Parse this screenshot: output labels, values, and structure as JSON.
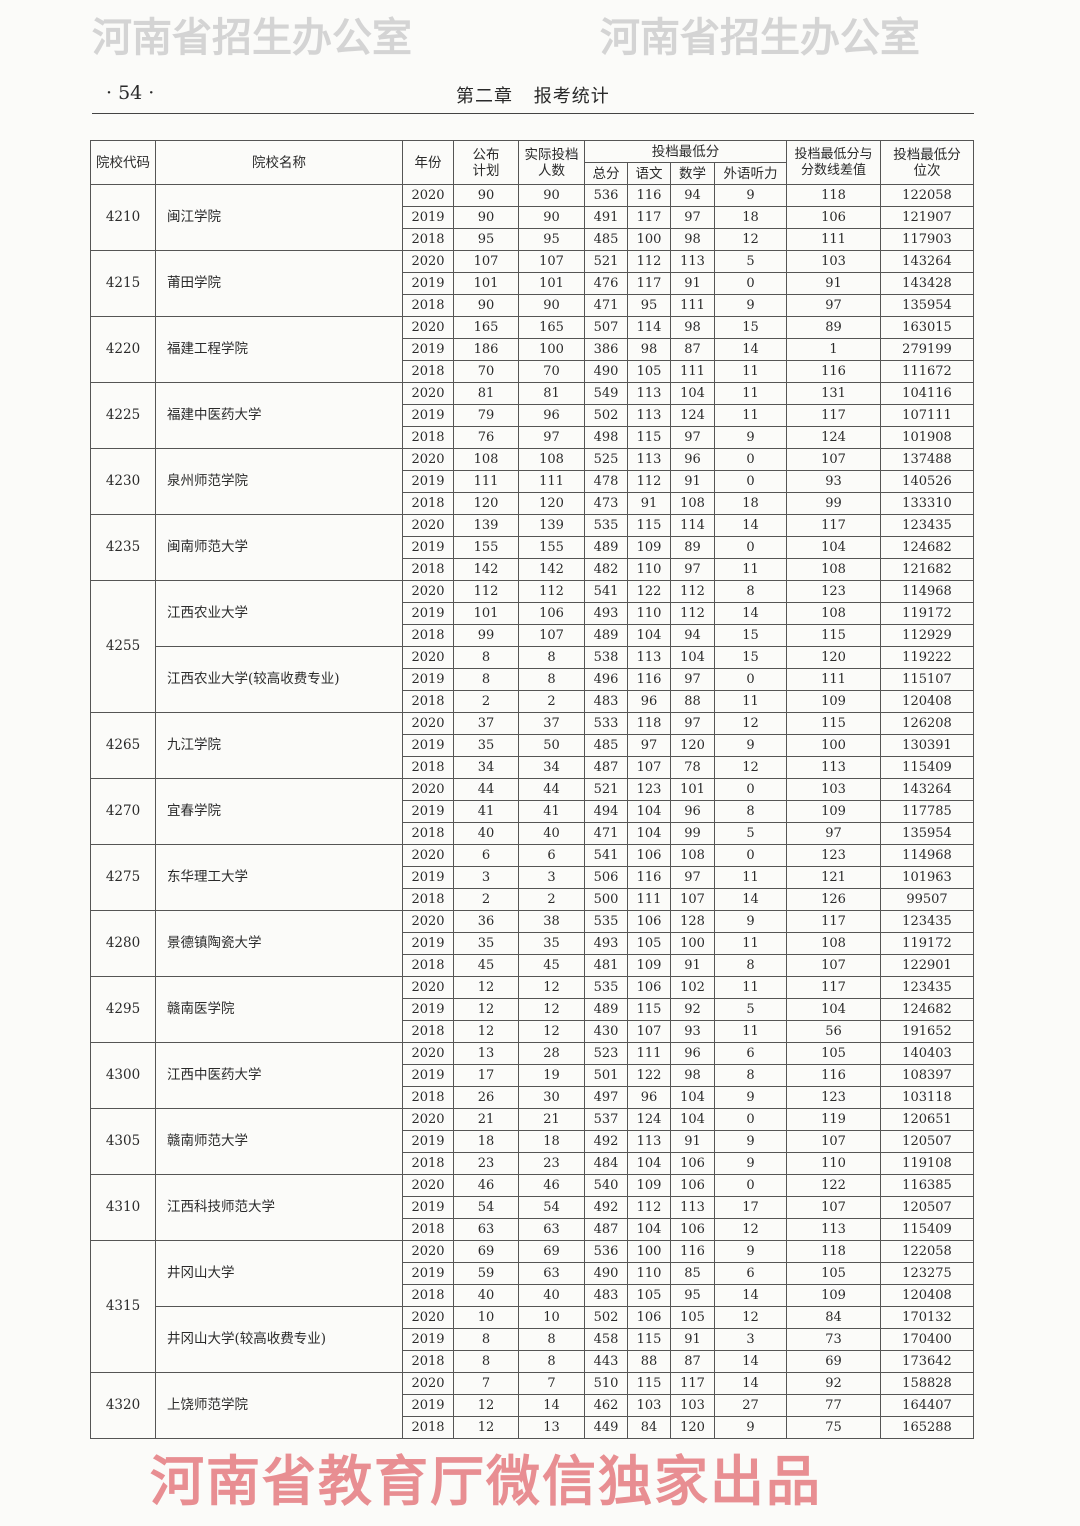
{
  "header": {
    "page_number": "· 54 ·",
    "chapter": "第二章 报考统计"
  },
  "columns": {
    "code": "院校代码",
    "name": "院校名称",
    "year": "年份",
    "plan": "公布计划",
    "actual": "实际投档人数",
    "min_score_group": "投档最低分",
    "total": "总分",
    "chinese": "语文",
    "math": "数学",
    "listening": "外语听力",
    "diff": "投档最低分与分数线差值",
    "rank": "投档最低分位次"
  },
  "watermarks": {
    "red": "河南省教育厅微信独家出品",
    "grey": "河南省招生办公室"
  },
  "groups": [
    {
      "code": "4210",
      "schools": [
        {
          "name": "闽江学院",
          "rows": [
            [
              "2020",
              "90",
              "90",
              "536",
              "116",
              "94",
              "9",
              "118",
              "122058"
            ],
            [
              "2019",
              "90",
              "90",
              "491",
              "117",
              "97",
              "18",
              "106",
              "121907"
            ],
            [
              "2018",
              "95",
              "95",
              "485",
              "100",
              "98",
              "12",
              "111",
              "117903"
            ]
          ]
        }
      ]
    },
    {
      "code": "4215",
      "schools": [
        {
          "name": "莆田学院",
          "rows": [
            [
              "2020",
              "107",
              "107",
              "521",
              "112",
              "113",
              "5",
              "103",
              "143264"
            ],
            [
              "2019",
              "101",
              "101",
              "476",
              "117",
              "91",
              "0",
              "91",
              "143428"
            ],
            [
              "2018",
              "90",
              "90",
              "471",
              "95",
              "111",
              "9",
              "97",
              "135954"
            ]
          ]
        }
      ]
    },
    {
      "code": "4220",
      "schools": [
        {
          "name": "福建工程学院",
          "rows": [
            [
              "2020",
              "165",
              "165",
              "507",
              "114",
              "98",
              "15",
              "89",
              "163015"
            ],
            [
              "2019",
              "186",
              "100",
              "386",
              "98",
              "87",
              "14",
              "1",
              "279199"
            ],
            [
              "2018",
              "70",
              "70",
              "490",
              "105",
              "111",
              "11",
              "116",
              "111672"
            ]
          ]
        }
      ]
    },
    {
      "code": "4225",
      "schools": [
        {
          "name": "福建中医药大学",
          "rows": [
            [
              "2020",
              "81",
              "81",
              "549",
              "113",
              "104",
              "11",
              "131",
              "104116"
            ],
            [
              "2019",
              "79",
              "96",
              "502",
              "113",
              "124",
              "11",
              "117",
              "107111"
            ],
            [
              "2018",
              "76",
              "97",
              "498",
              "115",
              "97",
              "9",
              "124",
              "101908"
            ]
          ]
        }
      ]
    },
    {
      "code": "4230",
      "schools": [
        {
          "name": "泉州师范学院",
          "rows": [
            [
              "2020",
              "108",
              "108",
              "525",
              "113",
              "96",
              "0",
              "107",
              "137488"
            ],
            [
              "2019",
              "111",
              "111",
              "478",
              "112",
              "91",
              "0",
              "93",
              "140526"
            ],
            [
              "2018",
              "120",
              "120",
              "473",
              "91",
              "108",
              "18",
              "99",
              "133310"
            ]
          ]
        }
      ]
    },
    {
      "code": "4235",
      "schools": [
        {
          "name": "闽南师范大学",
          "rows": [
            [
              "2020",
              "139",
              "139",
              "535",
              "115",
              "114",
              "14",
              "117",
              "123435"
            ],
            [
              "2019",
              "155",
              "155",
              "489",
              "109",
              "89",
              "0",
              "104",
              "124682"
            ],
            [
              "2018",
              "142",
              "142",
              "482",
              "110",
              "97",
              "11",
              "108",
              "121682"
            ]
          ]
        }
      ]
    },
    {
      "code": "4255",
      "schools": [
        {
          "name": "江西农业大学",
          "rows": [
            [
              "2020",
              "112",
              "112",
              "541",
              "122",
              "112",
              "8",
              "123",
              "114968"
            ],
            [
              "2019",
              "101",
              "106",
              "493",
              "110",
              "112",
              "14",
              "108",
              "119172"
            ],
            [
              "2018",
              "99",
              "107",
              "489",
              "104",
              "94",
              "15",
              "115",
              "112929"
            ]
          ]
        },
        {
          "name": "江西农业大学(较高收费专业)",
          "rows": [
            [
              "2020",
              "8",
              "8",
              "538",
              "113",
              "104",
              "15",
              "120",
              "119222"
            ],
            [
              "2019",
              "8",
              "8",
              "496",
              "116",
              "97",
              "0",
              "111",
              "115107"
            ],
            [
              "2018",
              "2",
              "2",
              "483",
              "96",
              "88",
              "11",
              "109",
              "120408"
            ]
          ]
        }
      ]
    },
    {
      "code": "4265",
      "schools": [
        {
          "name": "九江学院",
          "rows": [
            [
              "2020",
              "37",
              "37",
              "533",
              "118",
              "97",
              "12",
              "115",
              "126208"
            ],
            [
              "2019",
              "35",
              "50",
              "485",
              "97",
              "120",
              "9",
              "100",
              "130391"
            ],
            [
              "2018",
              "34",
              "34",
              "487",
              "107",
              "78",
              "12",
              "113",
              "115409"
            ]
          ]
        }
      ]
    },
    {
      "code": "4270",
      "schools": [
        {
          "name": "宜春学院",
          "rows": [
            [
              "2020",
              "44",
              "44",
              "521",
              "123",
              "101",
              "0",
              "103",
              "143264"
            ],
            [
              "2019",
              "41",
              "41",
              "494",
              "104",
              "96",
              "8",
              "109",
              "117785"
            ],
            [
              "2018",
              "40",
              "40",
              "471",
              "104",
              "99",
              "5",
              "97",
              "135954"
            ]
          ]
        }
      ]
    },
    {
      "code": "4275",
      "schools": [
        {
          "name": "东华理工大学",
          "rows": [
            [
              "2020",
              "6",
              "6",
              "541",
              "106",
              "108",
              "0",
              "123",
              "114968"
            ],
            [
              "2019",
              "3",
              "3",
              "506",
              "116",
              "97",
              "11",
              "121",
              "101963"
            ],
            [
              "2018",
              "2",
              "2",
              "500",
              "111",
              "107",
              "14",
              "126",
              "99507"
            ]
          ]
        }
      ]
    },
    {
      "code": "4280",
      "schools": [
        {
          "name": "景德镇陶瓷大学",
          "rows": [
            [
              "2020",
              "36",
              "38",
              "535",
              "106",
              "128",
              "9",
              "117",
              "123435"
            ],
            [
              "2019",
              "35",
              "35",
              "493",
              "105",
              "100",
              "11",
              "108",
              "119172"
            ],
            [
              "2018",
              "45",
              "45",
              "481",
              "109",
              "91",
              "8",
              "107",
              "122901"
            ]
          ]
        }
      ]
    },
    {
      "code": "4295",
      "schools": [
        {
          "name": "赣南医学院",
          "rows": [
            [
              "2020",
              "12",
              "12",
              "535",
              "106",
              "102",
              "11",
              "117",
              "123435"
            ],
            [
              "2019",
              "12",
              "12",
              "489",
              "115",
              "92",
              "5",
              "104",
              "124682"
            ],
            [
              "2018",
              "12",
              "12",
              "430",
              "107",
              "93",
              "11",
              "56",
              "191652"
            ]
          ]
        }
      ]
    },
    {
      "code": "4300",
      "schools": [
        {
          "name": "江西中医药大学",
          "rows": [
            [
              "2020",
              "13",
              "28",
              "523",
              "111",
              "96",
              "6",
              "105",
              "140403"
            ],
            [
              "2019",
              "17",
              "19",
              "501",
              "122",
              "98",
              "8",
              "116",
              "108397"
            ],
            [
              "2018",
              "26",
              "30",
              "497",
              "96",
              "104",
              "9",
              "123",
              "103118"
            ]
          ]
        }
      ]
    },
    {
      "code": "4305",
      "schools": [
        {
          "name": "赣南师范大学",
          "rows": [
            [
              "2020",
              "21",
              "21",
              "537",
              "124",
              "104",
              "0",
              "119",
              "120651"
            ],
            [
              "2019",
              "18",
              "18",
              "492",
              "113",
              "91",
              "9",
              "107",
              "120507"
            ],
            [
              "2018",
              "23",
              "23",
              "484",
              "104",
              "106",
              "9",
              "110",
              "119108"
            ]
          ]
        }
      ]
    },
    {
      "code": "4310",
      "schools": [
        {
          "name": "江西科技师范大学",
          "rows": [
            [
              "2020",
              "46",
              "46",
              "540",
              "109",
              "106",
              "0",
              "122",
              "116385"
            ],
            [
              "2019",
              "54",
              "54",
              "492",
              "112",
              "113",
              "17",
              "107",
              "120507"
            ],
            [
              "2018",
              "63",
              "63",
              "487",
              "104",
              "106",
              "12",
              "113",
              "115409"
            ]
          ]
        }
      ]
    },
    {
      "code": "4315",
      "schools": [
        {
          "name": "井冈山大学",
          "rows": [
            [
              "2020",
              "69",
              "69",
              "536",
              "100",
              "116",
              "9",
              "118",
              "122058"
            ],
            [
              "2019",
              "59",
              "63",
              "490",
              "110",
              "85",
              "6",
              "105",
              "123275"
            ],
            [
              "2018",
              "40",
              "40",
              "483",
              "105",
              "95",
              "14",
              "109",
              "120408"
            ]
          ]
        },
        {
          "name": "井冈山大学(较高收费专业)",
          "rows": [
            [
              "2020",
              "10",
              "10",
              "502",
              "106",
              "105",
              "12",
              "84",
              "170132"
            ],
            [
              "2019",
              "8",
              "8",
              "458",
              "115",
              "91",
              "3",
              "73",
              "170400"
            ],
            [
              "2018",
              "8",
              "8",
              "443",
              "88",
              "87",
              "14",
              "69",
              "173642"
            ]
          ]
        }
      ]
    },
    {
      "code": "4320",
      "schools": [
        {
          "name": "上饶师范学院",
          "rows": [
            [
              "2020",
              "7",
              "7",
              "510",
              "115",
              "117",
              "14",
              "92",
              "158828"
            ],
            [
              "2019",
              "12",
              "14",
              "462",
              "103",
              "103",
              "27",
              "77",
              "164407"
            ],
            [
              "2018",
              "12",
              "13",
              "449",
              "84",
              "120",
              "9",
              "75",
              "165288"
            ]
          ]
        }
      ]
    }
  ]
}
